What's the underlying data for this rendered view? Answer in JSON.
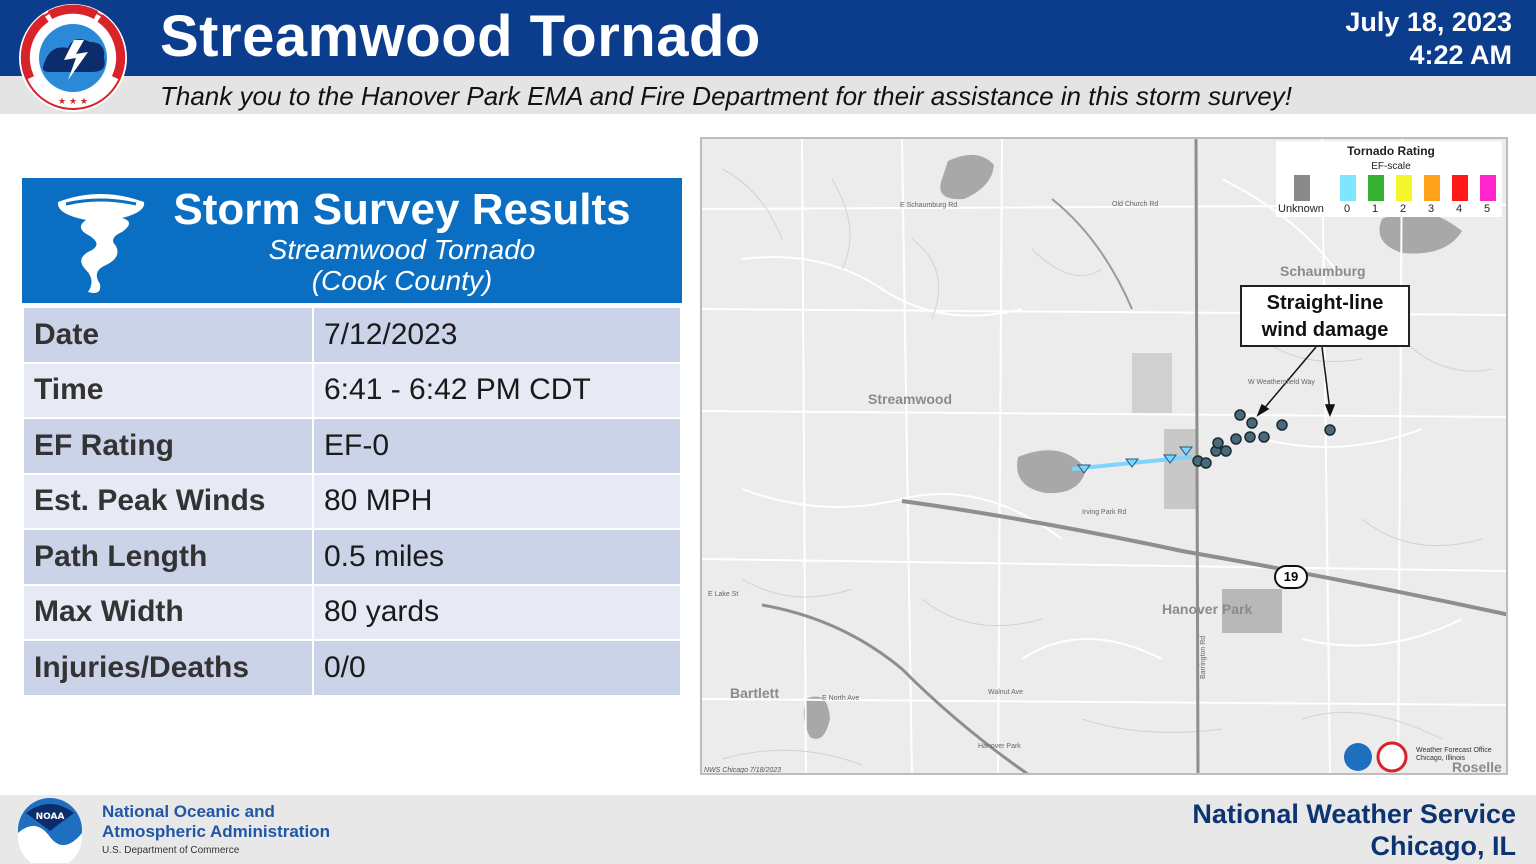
{
  "header": {
    "title": "Streamwood Tornado",
    "date": "July 18, 2023",
    "time": "4:22 AM",
    "thanks": "Thank you to the Hanover Park EMA and Fire Department for their assistance in this storm survey!",
    "logo_text": "NATIONAL WEATHER SERVICE"
  },
  "card": {
    "title": "Storm Survey Results",
    "subtitle_1": "Streamwood Tornado",
    "subtitle_2": "(Cook County)",
    "rows": [
      {
        "label": "Date",
        "value": "7/12/2023"
      },
      {
        "label": "Time",
        "value": "6:41 - 6:42 PM CDT"
      },
      {
        "label": "EF Rating",
        "value": "EF-0"
      },
      {
        "label": "Est. Peak Winds",
        "value": "80 MPH"
      },
      {
        "label": "Path Length",
        "value": "0.5 miles"
      },
      {
        "label": "Max Width",
        "value": "80 yards"
      },
      {
        "label": "Injuries/Deaths",
        "value": "0/0"
      }
    ]
  },
  "map": {
    "places": {
      "schaumburg": "Schaumburg",
      "streamwood": "Streamwood",
      "hanover_park": "Hanover Park",
      "bartlett": "Bartlett",
      "roselle": "Roselle"
    },
    "streets": {
      "schaumburg_rd": "E Schaumburg Rd",
      "old_church": "Old Church Rd",
      "irving_park": "Irving Park Rd",
      "lake_st": "E Lake St",
      "walnut": "Walnut Ave",
      "barrington": "Barrington Rd",
      "weathersfield": "W Weathersfield Way",
      "north_ave": "E North Ave",
      "hanover_park_rd": "Hanover Park"
    },
    "legend": {
      "title": "Tornado Rating",
      "subtitle": "EF-scale",
      "items": [
        {
          "label": "Unknown",
          "color": "#8a8a8a"
        },
        {
          "label": "0",
          "color": "#7fe6ff"
        },
        {
          "label": "1",
          "color": "#33b233"
        },
        {
          "label": "2",
          "color": "#f4f42a"
        },
        {
          "label": "3",
          "color": "#ffa21a"
        },
        {
          "label": "4",
          "color": "#ff1a1a"
        },
        {
          "label": "5",
          "color": "#ff26cc"
        }
      ]
    },
    "annotation_line1": "Straight-line",
    "annotation_line2": "wind damage",
    "route_number": "19",
    "wfo_line1": "Weather Forecast Office",
    "wfo_line2": "Chicago, Illinois",
    "credit": "NWS Chicago  7/18/2023",
    "path_color": "#7fd3ff"
  },
  "footer": {
    "noaa_line1": "National Oceanic and",
    "noaa_line2": "Atmospheric Administration",
    "department": "U.S. Department of Commerce",
    "nws_line1": "National Weather Service",
    "nws_line2": "Chicago, IL"
  },
  "colors": {
    "header_blue": "#0c3c8c",
    "card_blue": "#0a6fc2",
    "row_dark": "#cbd3e8",
    "row_light": "#e7eaf4"
  }
}
